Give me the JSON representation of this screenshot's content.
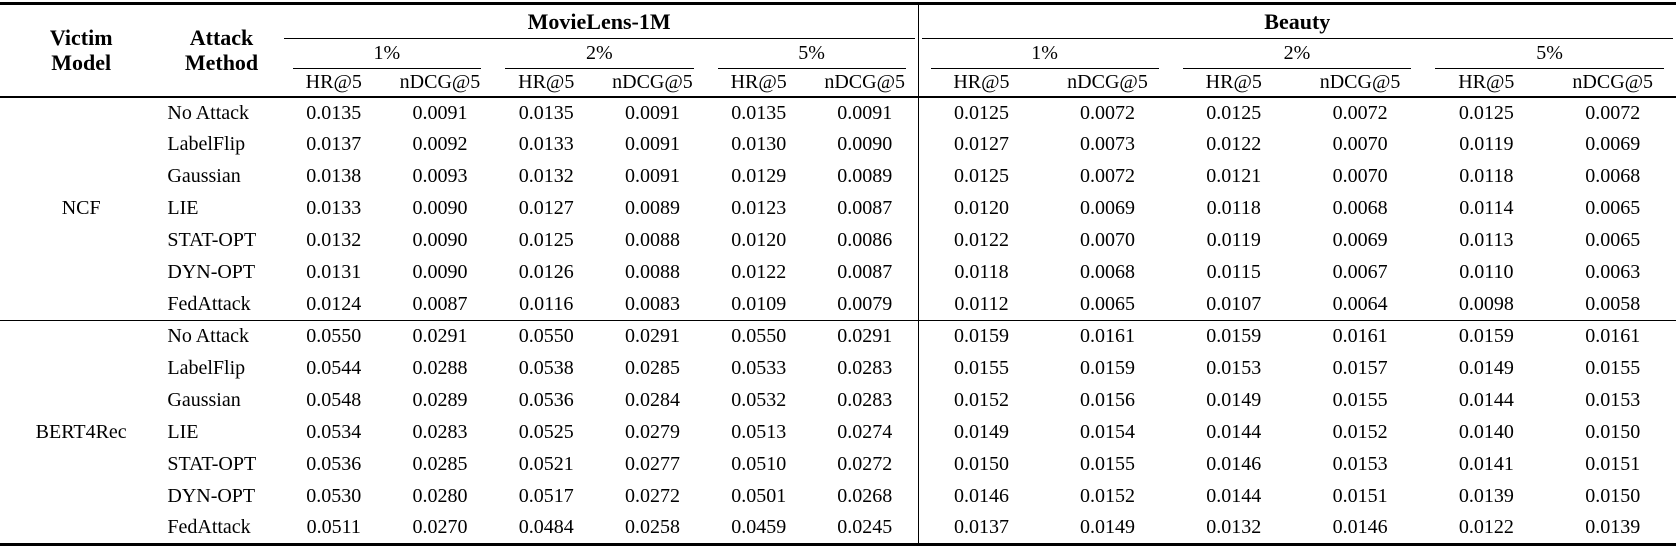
{
  "table": {
    "corner_headers": {
      "victim": [
        "Victim",
        "Model"
      ],
      "attack": [
        "Attack",
        "Method"
      ]
    },
    "datasets": [
      {
        "name": "MovieLens-1M",
        "ratios": [
          "1%",
          "2%",
          "5%"
        ]
      },
      {
        "name": "Beauty",
        "ratios": [
          "1%",
          "2%",
          "5%"
        ]
      }
    ],
    "metrics": [
      "HR@5",
      "nDCG@5"
    ],
    "groups": [
      {
        "model": "NCF",
        "rows": [
          {
            "method": "No Attack",
            "values": [
              "0.0135",
              "0.0091",
              "0.0135",
              "0.0091",
              "0.0135",
              "0.0091",
              "0.0125",
              "0.0072",
              "0.0125",
              "0.0072",
              "0.0125",
              "0.0072"
            ]
          },
          {
            "method": "LabelFlip",
            "values": [
              "0.0137",
              "0.0092",
              "0.0133",
              "0.0091",
              "0.0130",
              "0.0090",
              "0.0127",
              "0.0073",
              "0.0122",
              "0.0070",
              "0.0119",
              "0.0069"
            ]
          },
          {
            "method": "Gaussian",
            "values": [
              "0.0138",
              "0.0093",
              "0.0132",
              "0.0091",
              "0.0129",
              "0.0089",
              "0.0125",
              "0.0072",
              "0.0121",
              "0.0070",
              "0.0118",
              "0.0068"
            ]
          },
          {
            "method": "LIE",
            "values": [
              "0.0133",
              "0.0090",
              "0.0127",
              "0.0089",
              "0.0123",
              "0.0087",
              "0.0120",
              "0.0069",
              "0.0118",
              "0.0068",
              "0.0114",
              "0.0065"
            ]
          },
          {
            "method": "STAT-OPT",
            "values": [
              "0.0132",
              "0.0090",
              "0.0125",
              "0.0088",
              "0.0120",
              "0.0086",
              "0.0122",
              "0.0070",
              "0.0119",
              "0.0069",
              "0.0113",
              "0.0065"
            ]
          },
          {
            "method": "DYN-OPT",
            "values": [
              "0.0131",
              "0.0090",
              "0.0126",
              "0.0088",
              "0.0122",
              "0.0087",
              "0.0118",
              "0.0068",
              "0.0115",
              "0.0067",
              "0.0110",
              "0.0063"
            ]
          },
          {
            "method": "FedAttack",
            "values": [
              "0.0124",
              "0.0087",
              "0.0116",
              "0.0083",
              "0.0109",
              "0.0079",
              "0.0112",
              "0.0065",
              "0.0107",
              "0.0064",
              "0.0098",
              "0.0058"
            ]
          }
        ]
      },
      {
        "model": "BERT4Rec",
        "rows": [
          {
            "method": "No Attack",
            "values": [
              "0.0550",
              "0.0291",
              "0.0550",
              "0.0291",
              "0.0550",
              "0.0291",
              "0.0159",
              "0.0161",
              "0.0159",
              "0.0161",
              "0.0159",
              "0.0161"
            ]
          },
          {
            "method": "LabelFlip",
            "values": [
              "0.0544",
              "0.0288",
              "0.0538",
              "0.0285",
              "0.0533",
              "0.0283",
              "0.0155",
              "0.0159",
              "0.0153",
              "0.0157",
              "0.0149",
              "0.0155"
            ]
          },
          {
            "method": "Gaussian",
            "values": [
              "0.0548",
              "0.0289",
              "0.0536",
              "0.0284",
              "0.0532",
              "0.0283",
              "0.0152",
              "0.0156",
              "0.0149",
              "0.0155",
              "0.0144",
              "0.0153"
            ]
          },
          {
            "method": "LIE",
            "values": [
              "0.0534",
              "0.0283",
              "0.0525",
              "0.0279",
              "0.0513",
              "0.0274",
              "0.0149",
              "0.0154",
              "0.0144",
              "0.0152",
              "0.0140",
              "0.0150"
            ]
          },
          {
            "method": "STAT-OPT",
            "values": [
              "0.0536",
              "0.0285",
              "0.0521",
              "0.0277",
              "0.0510",
              "0.0272",
              "0.0150",
              "0.0155",
              "0.0146",
              "0.0153",
              "0.0141",
              "0.0151"
            ]
          },
          {
            "method": "DYN-OPT",
            "values": [
              "0.0530",
              "0.0280",
              "0.0517",
              "0.0272",
              "0.0501",
              "0.0268",
              "0.0146",
              "0.0152",
              "0.0144",
              "0.0151",
              "0.0139",
              "0.0150"
            ]
          },
          {
            "method": "FedAttack",
            "values": [
              "0.0511",
              "0.0270",
              "0.0484",
              "0.0258",
              "0.0459",
              "0.0245",
              "0.0137",
              "0.0149",
              "0.0132",
              "0.0146",
              "0.0122",
              "0.0139"
            ]
          }
        ]
      }
    ]
  }
}
